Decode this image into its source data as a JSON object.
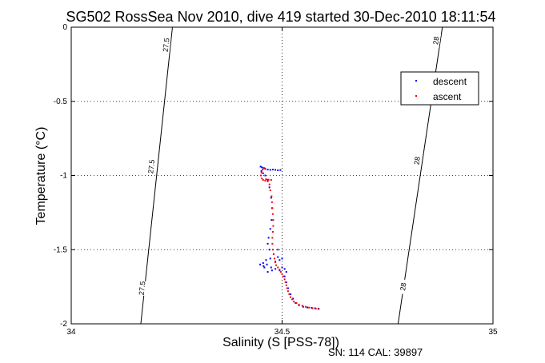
{
  "chart_data": {
    "type": "scatter",
    "title": "SG502 RossSea Nov 2010, dive 419 started 30-Dec-2010 18:11:54",
    "xlabel": "Salinity (S [PSS-78])",
    "ylabel": "Temperature (°C)",
    "xlim": [
      34,
      35
    ],
    "ylim": [
      -2,
      0
    ],
    "xticks": [
      "34",
      "34.5",
      "35"
    ],
    "yticks": [
      "-2",
      "-1.5",
      "-1",
      "-0.5",
      "0"
    ],
    "grid": true,
    "legend_position": "top-right",
    "footer": "SN: 114  CAL: 39897",
    "colors": {
      "descent": "#0000ff",
      "ascent": "#ff0000",
      "contour": "#000000"
    },
    "contours": [
      {
        "label": "27.5",
        "points": [
          [
            34.165,
            -2.0
          ],
          [
            34.24,
            0.0
          ]
        ],
        "label_positions": [
          [
            34.225,
            -0.12
          ],
          [
            34.19,
            -0.94
          ],
          [
            34.168,
            -1.76
          ]
        ]
      },
      {
        "label": "28",
        "points": [
          [
            34.775,
            -2.0
          ],
          [
            34.88,
            0.0
          ]
        ],
        "label_positions": [
          [
            34.865,
            -0.09
          ],
          [
            34.82,
            -0.9
          ],
          [
            34.787,
            -1.75
          ]
        ]
      }
    ],
    "series": [
      {
        "name": "descent",
        "marker": "dot",
        "points": [
          [
            34.449,
            -0.94
          ],
          [
            34.452,
            -0.945
          ],
          [
            34.456,
            -0.95
          ],
          [
            34.46,
            -0.955
          ],
          [
            34.466,
            -0.96
          ],
          [
            34.472,
            -0.962
          ],
          [
            34.478,
            -0.96
          ],
          [
            34.484,
            -0.962
          ],
          [
            34.49,
            -0.965
          ],
          [
            34.496,
            -0.963
          ],
          [
            34.451,
            -0.97
          ],
          [
            34.455,
            -0.985
          ],
          [
            34.46,
            -1.0
          ],
          [
            34.466,
            -1.03
          ],
          [
            34.47,
            -1.08
          ],
          [
            34.474,
            -1.15
          ],
          [
            34.476,
            -1.22
          ],
          [
            34.475,
            -1.3
          ],
          [
            34.472,
            -1.36
          ],
          [
            34.468,
            -1.42
          ],
          [
            34.466,
            -1.46
          ],
          [
            34.47,
            -1.5
          ],
          [
            34.48,
            -1.53
          ],
          [
            34.49,
            -1.55
          ],
          [
            34.494,
            -1.57
          ],
          [
            34.484,
            -1.58
          ],
          [
            34.472,
            -1.56
          ],
          [
            34.462,
            -1.57
          ],
          [
            34.455,
            -1.59
          ],
          [
            34.448,
            -1.6
          ],
          [
            34.456,
            -1.61
          ],
          [
            34.464,
            -1.6
          ],
          [
            34.474,
            -1.62
          ],
          [
            34.484,
            -1.63
          ],
          [
            34.494,
            -1.64
          ],
          [
            34.5,
            -1.62
          ],
          [
            34.506,
            -1.63
          ],
          [
            34.51,
            -1.65
          ],
          [
            34.476,
            -1.64
          ],
          [
            34.466,
            -1.65
          ],
          [
            34.458,
            -1.62
          ],
          [
            34.506,
            -1.68
          ],
          [
            34.51,
            -1.72
          ],
          [
            34.514,
            -1.76
          ],
          [
            34.52,
            -1.8
          ],
          [
            34.526,
            -1.83
          ],
          [
            34.532,
            -1.86
          ],
          [
            34.54,
            -1.875
          ],
          [
            34.55,
            -1.885
          ],
          [
            34.56,
            -1.89
          ],
          [
            34.57,
            -1.892
          ],
          [
            34.578,
            -1.895
          ],
          [
            34.586,
            -1.897
          ],
          [
            34.49,
            -1.5
          ],
          [
            34.5,
            -1.56
          ]
        ]
      },
      {
        "name": "ascent",
        "marker": "dot",
        "points": [
          [
            34.587,
            -1.9
          ],
          [
            34.58,
            -1.898
          ],
          [
            34.572,
            -1.895
          ],
          [
            34.564,
            -1.89
          ],
          [
            34.556,
            -1.885
          ],
          [
            34.548,
            -1.878
          ],
          [
            34.54,
            -1.87
          ],
          [
            34.534,
            -1.86
          ],
          [
            34.528,
            -1.85
          ],
          [
            34.524,
            -1.835
          ],
          [
            34.52,
            -1.82
          ],
          [
            34.517,
            -1.8
          ],
          [
            34.514,
            -1.78
          ],
          [
            34.512,
            -1.76
          ],
          [
            34.51,
            -1.74
          ],
          [
            34.508,
            -1.72
          ],
          [
            34.506,
            -1.7
          ],
          [
            34.503,
            -1.68
          ],
          [
            34.5,
            -1.665
          ],
          [
            34.497,
            -1.65
          ],
          [
            34.494,
            -1.635
          ],
          [
            34.49,
            -1.62
          ],
          [
            34.486,
            -1.605
          ],
          [
            34.484,
            -1.585
          ],
          [
            34.482,
            -1.56
          ],
          [
            34.48,
            -1.53
          ],
          [
            34.478,
            -1.5
          ],
          [
            34.477,
            -1.46
          ],
          [
            34.477,
            -1.42
          ],
          [
            34.478,
            -1.38
          ],
          [
            34.479,
            -1.34
          ],
          [
            34.479,
            -1.3
          ],
          [
            34.478,
            -1.26
          ],
          [
            34.477,
            -1.22
          ],
          [
            34.476,
            -1.18
          ],
          [
            34.475,
            -1.14
          ],
          [
            34.472,
            -1.1
          ],
          [
            34.47,
            -1.06
          ],
          [
            34.466,
            -1.04
          ],
          [
            34.46,
            -1.035
          ],
          [
            34.455,
            -1.03
          ],
          [
            34.452,
            -1.02
          ],
          [
            34.45,
            -1.0
          ],
          [
            34.451,
            -0.98
          ],
          [
            34.454,
            -0.96
          ],
          [
            34.458,
            -0.95
          ],
          [
            34.462,
            -1.025
          ],
          [
            34.468,
            -1.028
          ],
          [
            34.474,
            -1.03
          ]
        ]
      }
    ]
  }
}
